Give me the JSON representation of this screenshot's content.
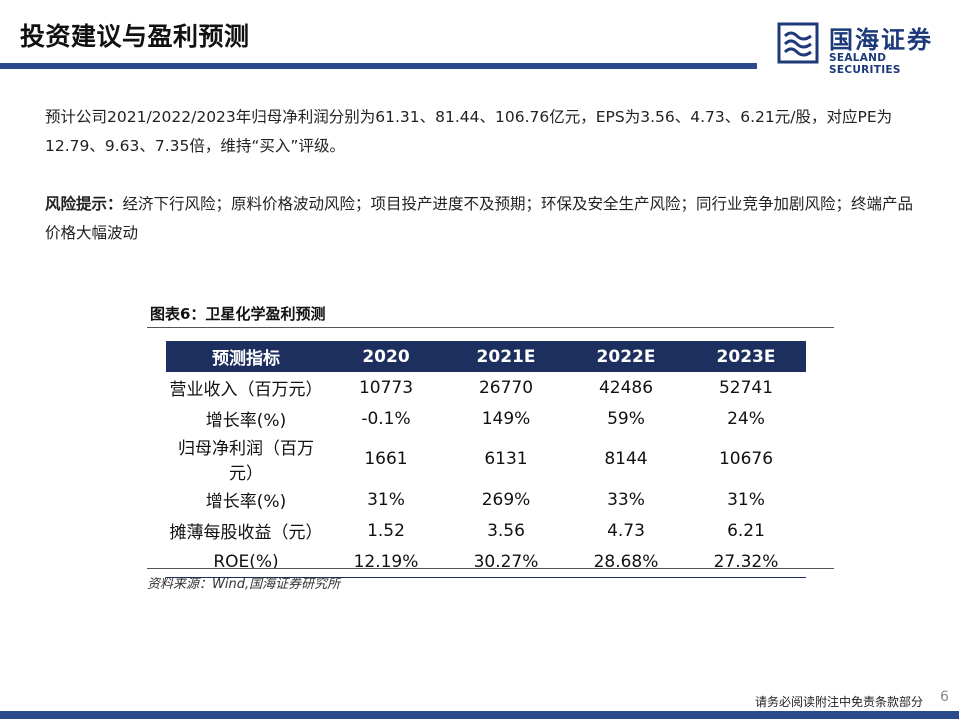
{
  "header": {
    "title": "投资建议与盈利预测",
    "logo_cn": "国海证券",
    "logo_en": "SEALAND SECURITIES"
  },
  "paragraph1": "预计公司2021/2022/2023年归母净利润分别为61.31、81.44、106.76亿元，EPS为3.56、4.73、6.21元/股，对应PE为12.79、9.63、7.35倍，维持“买入”评级。",
  "risk": {
    "label": "风险提示：",
    "text": "经济下行风险；原料价格波动风险；项目投产进度不及预期；环保及安全生产风险；同行业竞争加剧风险；终端产品价格大幅波动"
  },
  "figure": {
    "title": "图表6：卫星化学盈利预测",
    "columns": [
      "预测指标",
      "2020",
      "2021E",
      "2022E",
      "2023E"
    ],
    "rows": [
      [
        "营业收入（百万元）",
        "10773",
        "26770",
        "42486",
        "52741"
      ],
      [
        "增长率(%)",
        "-0.1%",
        "149%",
        "59%",
        "24%"
      ],
      [
        "归母净利润（百万元）",
        "1661",
        "6131",
        "8144",
        "10676"
      ],
      [
        "增长率(%)",
        "31%",
        "269%",
        "33%",
        "31%"
      ],
      [
        "摊薄每股收益（元）",
        "1.52",
        "3.56",
        "4.73",
        "6.21"
      ],
      [
        "ROE(%)",
        "12.19%",
        "30.27%",
        "28.68%",
        "27.32%"
      ]
    ],
    "source": "资料来源：Wind,国海证券研究所"
  },
  "footer": {
    "disclaimer": "请务必阅读附注中免责条款部分",
    "page": "6"
  },
  "colors": {
    "brand": "#2b4a8c",
    "table_header": "#1c2f5e"
  }
}
